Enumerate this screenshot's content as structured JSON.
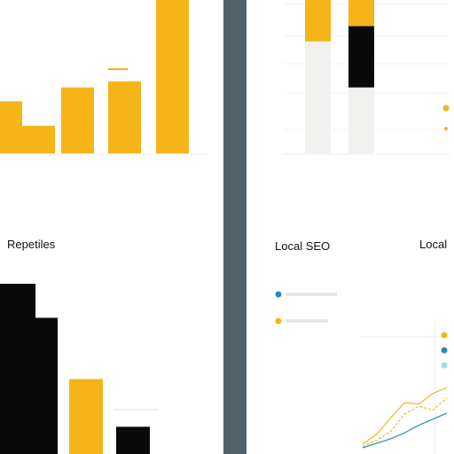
{
  "colors": {
    "yellow": "#f5b519",
    "black": "#0a0a0a",
    "blue": "#2a8ab8",
    "light_blue": "#a9d7ea",
    "grey": "#f1f1ef",
    "divider": "#53626a"
  },
  "chart_data": [
    {
      "type": "bar",
      "title": "",
      "categories": [
        "",
        "",
        "",
        "",
        ""
      ],
      "values": [
        34,
        18,
        43,
        47,
        100
      ],
      "ylim": [
        0,
        100
      ],
      "grid": false
    },
    {
      "type": "bar",
      "title": "Local SEO",
      "stacked": true,
      "categories": [
        "",
        "",
        ""
      ],
      "series": [
        {
          "values": [
            73,
            43,
            0
          ]
        },
        {
          "values": [
            0,
            40,
            0
          ]
        },
        {
          "values": [
            27,
            17,
            0
          ]
        }
      ],
      "ylim": [
        0,
        100
      ],
      "grid": true
    },
    {
      "type": "bar",
      "title": "Repetiles",
      "categories": [
        "",
        "",
        "",
        ""
      ],
      "values": [
        100,
        80,
        44,
        16
      ],
      "series_colors": [
        "black",
        "black",
        "yellow",
        "black"
      ],
      "ylim": [
        0,
        100
      ]
    },
    {
      "type": "line",
      "title": "Local",
      "legend": "left",
      "x": [
        0,
        1,
        2,
        3,
        4,
        5,
        6
      ],
      "series": [
        {
          "values": [
            5,
            18,
            40,
            60,
            58,
            72,
            80
          ]
        },
        {
          "values": [
            2,
            10,
            22,
            45,
            55,
            50,
            66
          ]
        },
        {
          "values": [
            0,
            6,
            12,
            20,
            30,
            38,
            46
          ]
        }
      ],
      "ylim": [
        0,
        100
      ]
    }
  ]
}
